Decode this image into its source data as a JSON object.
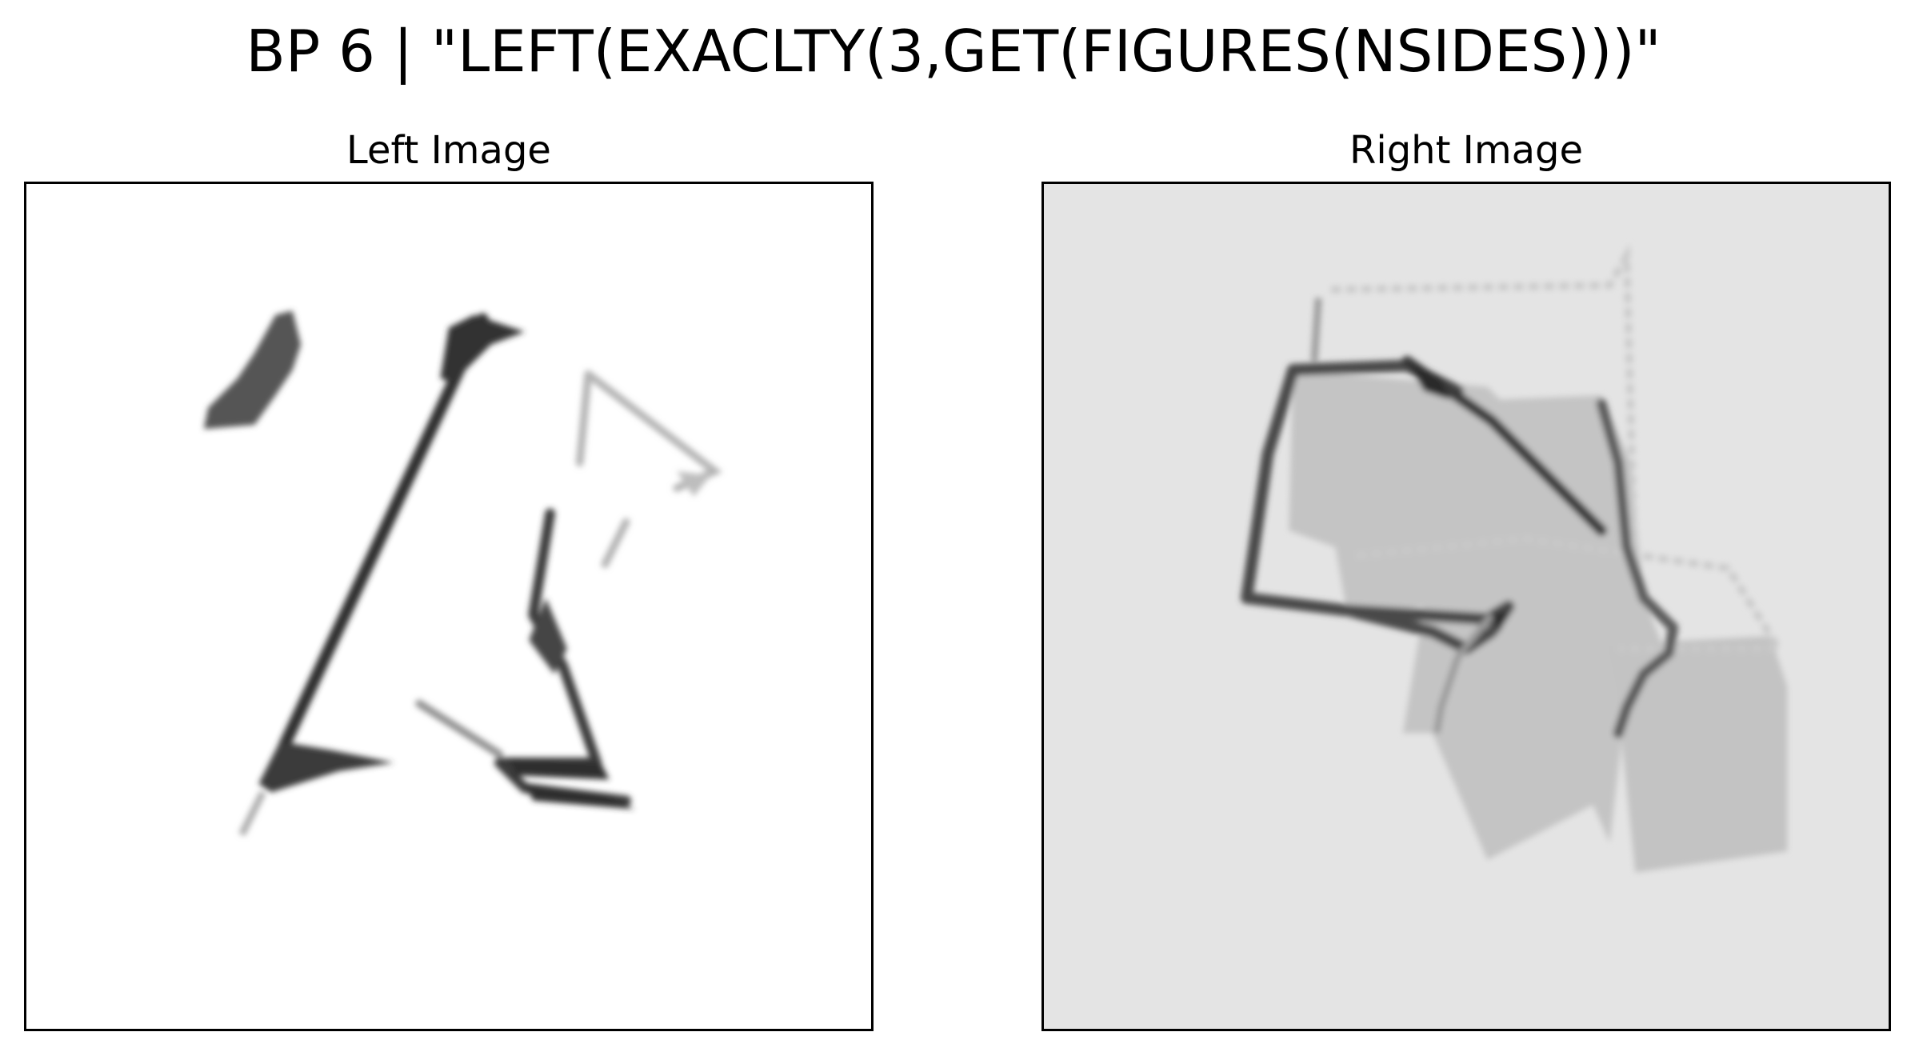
{
  "figure": {
    "title": "BP 6 | \"LEFT(EXACLTY(3,GET(FIGURES(NSIDES)))\""
  },
  "panels": [
    {
      "title": "Left Image",
      "background": "#ffffff",
      "description_icon": "sketch-image"
    },
    {
      "title": "Right Image",
      "background": "#e4e4e4",
      "description_icon": "sketch-image"
    }
  ],
  "colors": {
    "ink_dark": "#2a2a2a",
    "ink_mid": "#555555",
    "ink_light": "#9a9a9a",
    "fill_gray": "#c3c3c3",
    "frame": "#000000"
  }
}
